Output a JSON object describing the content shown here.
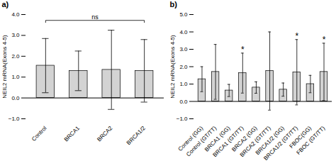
{
  "chart_data": [
    {
      "type": "bar",
      "title": "a)",
      "categories": [
        "Control",
        "BRCA1",
        "BRCA2",
        "BRCA1/2"
      ],
      "values": [
        1.55,
        1.3,
        1.35,
        1.3
      ],
      "errors": [
        1.3,
        0.95,
        1.9,
        1.5
      ],
      "ylabel": "NEIL2 mRNA(Exons 4-5)",
      "ylim": [
        -1,
        4
      ],
      "yticks": [
        -1,
        0,
        1,
        2,
        3,
        4
      ],
      "color": "#d3d3d3",
      "grid": false,
      "annotations": [
        {
          "text": "ns",
          "from": "Control",
          "to": "BRCA1/2",
          "y": 3.72
        }
      ]
    },
    {
      "type": "bar",
      "title": "b)",
      "categories": [
        "Control (GG)",
        "Control (GT/TT)",
        "BRCA1 (GG)",
        "BRCA1 (GT/TT)",
        "BRCA2 (GG)",
        "BRCA2 (GT/TT)",
        "BRCA1/2 (GG)",
        "BRCA1/2 (GT/TT)",
        "FBOC(GG)",
        "FBOC (GT/TT)"
      ],
      "values": [
        1.28,
        1.7,
        0.63,
        1.63,
        0.8,
        1.75,
        0.68,
        1.68,
        1.0,
        1.7
      ],
      "errors": [
        0.72,
        1.58,
        0.35,
        1.15,
        0.33,
        2.25,
        0.38,
        1.88,
        0.5,
        1.65
      ],
      "ylabel": "NEIL2 mRNA(Exons 4-5)",
      "ylim": [
        -1,
        5
      ],
      "yticks": [
        -1,
        0,
        1,
        2,
        3,
        4,
        5
      ],
      "color": "#d3d3d3",
      "grid": false,
      "annotations": [
        {
          "text": "*",
          "category": "BRCA1 (GT/TT)"
        },
        {
          "text": "*",
          "category": "BRCA1/2 (GT/TT)"
        },
        {
          "text": "*",
          "category": "FBOC (GT/TT)"
        }
      ]
    }
  ]
}
